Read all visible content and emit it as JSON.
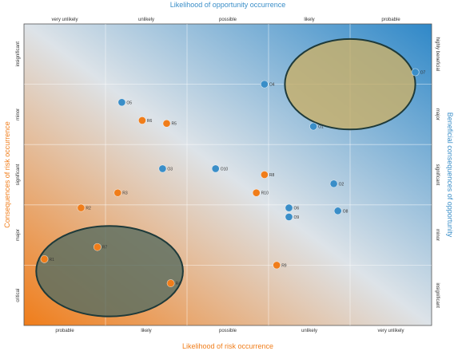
{
  "chart_data": {
    "type": "scatter",
    "title": "",
    "axes": {
      "top": {
        "label": "Likelihood of opportunity occurrence",
        "color": "#3a8ec8",
        "ticks": [
          "very unlikely",
          "unlikely",
          "possible",
          "likely",
          "probable"
        ]
      },
      "bottom": {
        "label": "Likelihood of risk occurrence",
        "color": "#f07d1a",
        "ticks": [
          "probable",
          "likely",
          "possible",
          "unlikely",
          "very unlikely"
        ]
      },
      "left": {
        "label": "Consequences of risk occurrence",
        "color": "#f07d1a",
        "ticks": [
          "critical",
          "major",
          "significant",
          "minor",
          "insignificant"
        ]
      },
      "right": {
        "label": "Beneficial consequences of opportunity",
        "color": "#3a8ec8",
        "ticks": [
          "highly beneficial",
          "major",
          "significant",
          "minor",
          "insignificant"
        ]
      }
    },
    "xlim": [
      0,
      5
    ],
    "ylim": [
      0,
      5
    ],
    "grid": true,
    "background_gradient": {
      "from": "#f07d1a",
      "mid": "#dde3e8",
      "to": "#2f88c8"
    },
    "colors": {
      "risk": "#f07d1a",
      "opportunity": "#3a8ec8"
    },
    "series": [
      {
        "name": "",
        "color": "#f07d1a",
        "points": [
          {
            "x": 1.45,
            "y": 3.4,
            "label": "R6"
          },
          {
            "x": 1.75,
            "y": 3.35,
            "label": "R5"
          },
          {
            "x": 1.15,
            "y": 2.2,
            "label": "R3"
          },
          {
            "x": 0.7,
            "y": 1.95,
            "label": "R2"
          },
          {
            "x": 0.9,
            "y": 1.3,
            "label": "R7"
          },
          {
            "x": 0.25,
            "y": 1.1,
            "label": "R1"
          },
          {
            "x": 1.8,
            "y": 0.7,
            "label": "R4"
          },
          {
            "x": 2.95,
            "y": 2.5,
            "label": "R8"
          },
          {
            "x": 2.85,
            "y": 2.2,
            "label": "R10"
          },
          {
            "x": 3.1,
            "y": 1.0,
            "label": "R9"
          }
        ]
      },
      {
        "name": "",
        "color": "#3a8ec8",
        "points": [
          {
            "x": 1.2,
            "y": 3.7,
            "label": "O5"
          },
          {
            "x": 2.95,
            "y": 4.0,
            "label": "O4"
          },
          {
            "x": 4.8,
            "y": 4.2,
            "label": "O7"
          },
          {
            "x": 3.55,
            "y": 3.3,
            "label": "O1"
          },
          {
            "x": 1.7,
            "y": 2.6,
            "label": "O3"
          },
          {
            "x": 2.35,
            "y": 2.6,
            "label": "O10"
          },
          {
            "x": 3.8,
            "y": 2.35,
            "label": "O2"
          },
          {
            "x": 3.25,
            "y": 1.95,
            "label": "O6"
          },
          {
            "x": 3.25,
            "y": 1.8,
            "label": "O9"
          },
          {
            "x": 3.85,
            "y": 1.9,
            "label": "O8"
          }
        ]
      }
    ],
    "highlight_regions": [
      {
        "cx": 4.0,
        "cy": 4.0,
        "rx": 0.8,
        "ry": 0.75,
        "fill": "#c8b06a",
        "stroke": "#1e3a3a"
      },
      {
        "cx": 1.05,
        "cy": 0.9,
        "rx": 0.9,
        "ry": 0.75,
        "fill": "#5a6e60",
        "stroke": "#1e3a3a"
      }
    ]
  }
}
